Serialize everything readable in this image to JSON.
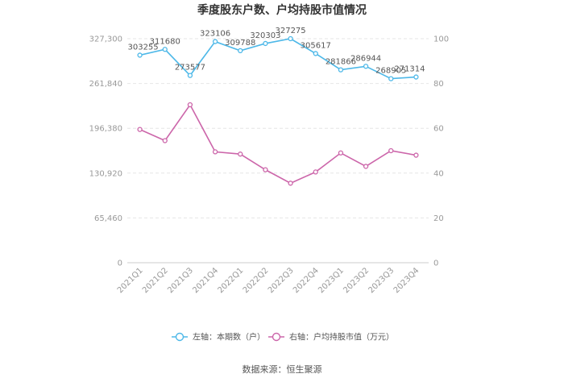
{
  "chart_data": {
    "type": "line",
    "title": "季度股东户数、户均持股市值情况",
    "categories": [
      "2021Q1",
      "2021Q2",
      "2021Q3",
      "2021Q4",
      "2022Q1",
      "2022Q2",
      "2022Q3",
      "2022Q4",
      "2023Q1",
      "2023Q2",
      "2023Q3",
      "2023Q4"
    ],
    "left_axis": {
      "ylim": [
        0,
        327300
      ],
      "ticks": [
        "0",
        "65,460",
        "130,920",
        "196,380",
        "261,840",
        "327,300"
      ]
    },
    "right_axis": {
      "ylim": [
        0,
        100
      ],
      "ticks": [
        "0",
        "20",
        "40",
        "60",
        "80",
        "100"
      ]
    },
    "series": [
      {
        "name": "左轴：本期数（户）",
        "axis": "left",
        "color": "#4db8e8",
        "values": [
          303255,
          311680,
          273577,
          323106,
          309788,
          320303,
          327275,
          305617,
          281866,
          286944,
          268905,
          271314
        ],
        "labels": [
          "303255",
          "311680",
          "273577",
          "323106",
          "309788",
          "320303",
          "327275",
          "305617",
          "281866",
          "286944",
          "268905",
          "271314"
        ]
      },
      {
        "name": "右轴：户均持股市值（万元）",
        "axis": "right",
        "color": "#cc66aa",
        "values": [
          59.5,
          54.5,
          70.5,
          49.5,
          48.5,
          41.5,
          35.5,
          40.5,
          49.0,
          43.0,
          50.0,
          48.0
        ]
      }
    ],
    "grid": true,
    "legend_position": "bottom"
  },
  "source": "数据来源：恒生聚源"
}
